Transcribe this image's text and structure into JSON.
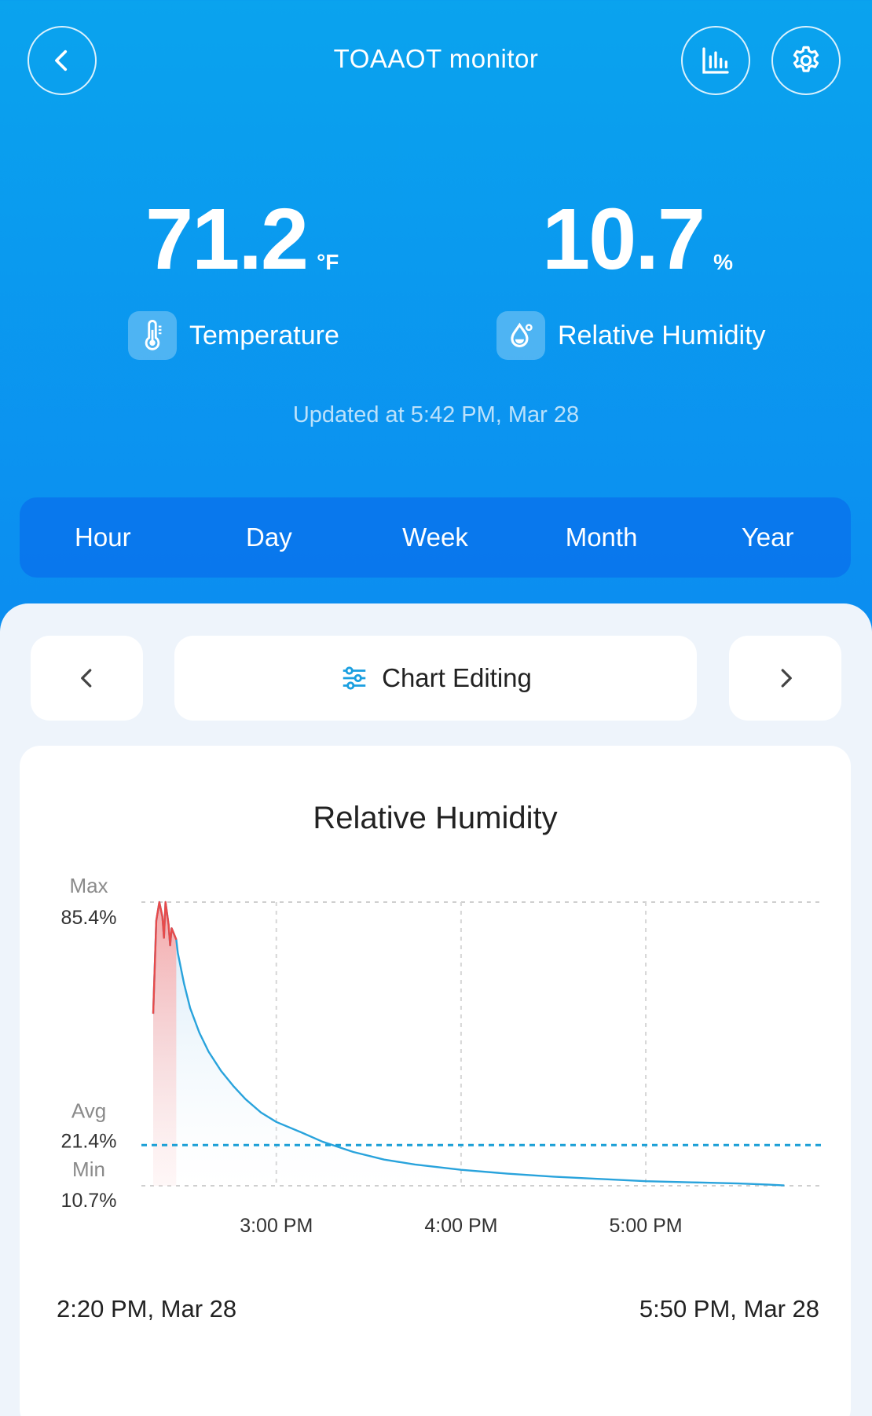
{
  "header": {
    "title": "TOAAOT monitor"
  },
  "temperature": {
    "value": "71.2",
    "unit": "°F",
    "label": "Temperature"
  },
  "humidity": {
    "value": "10.7",
    "unit": "%",
    "label": "Relative Humidity"
  },
  "updated": "Updated at 5:42 PM,  Mar 28",
  "periods": [
    "Hour",
    "Day",
    "Week",
    "Month",
    "Year"
  ],
  "chart_nav": {
    "edit_label": "Chart Editing"
  },
  "colors": {
    "accent": "#0b8ff0",
    "line": "#29a3dc",
    "peak": "#e84a4a",
    "avg_line": "#1a9fd6"
  },
  "chart_data": {
    "type": "line",
    "title": "Relative Humidity",
    "y_unit": "%",
    "ylim": [
      10.7,
      85.4
    ],
    "stats": {
      "max_label": "Max",
      "max": "85.4%",
      "avg_label": "Avg",
      "avg": "21.4%",
      "min_label": "Min",
      "min": "10.7%"
    },
    "avg_value": 21.4,
    "xlim_minutes": [
      0,
      210
    ],
    "x_ticks": [
      {
        "minute": 40,
        "label": "3:00 PM"
      },
      {
        "minute": 100,
        "label": "4:00 PM"
      },
      {
        "minute": 160,
        "label": "5:00 PM"
      }
    ],
    "series": [
      {
        "x_minutes": [
          0,
          1,
          2,
          3,
          3.5,
          4,
          5,
          5.5,
          6,
          7,
          7.5,
          8,
          10,
          12,
          15,
          18,
          22,
          26,
          30,
          35,
          40,
          48,
          55,
          65,
          75,
          85,
          100,
          115,
          130,
          145,
          160,
          175,
          190,
          200,
          205
        ],
        "values": [
          56.0,
          80.5,
          85.4,
          81.5,
          76.0,
          85.4,
          79.5,
          74.0,
          78.5,
          76.5,
          75.5,
          72.0,
          64.0,
          57.5,
          51.0,
          46.0,
          41.0,
          37.0,
          33.5,
          30.0,
          27.5,
          24.8,
          22.3,
          19.6,
          17.6,
          16.3,
          14.9,
          13.9,
          13.1,
          12.5,
          11.9,
          11.6,
          11.3,
          11.0,
          10.8
        ],
        "peak_until_minute": 7.5
      }
    ],
    "range_start": "2:20 PM,  Mar 28",
    "range_end": "5:50 PM,  Mar 28",
    "grid": true
  }
}
